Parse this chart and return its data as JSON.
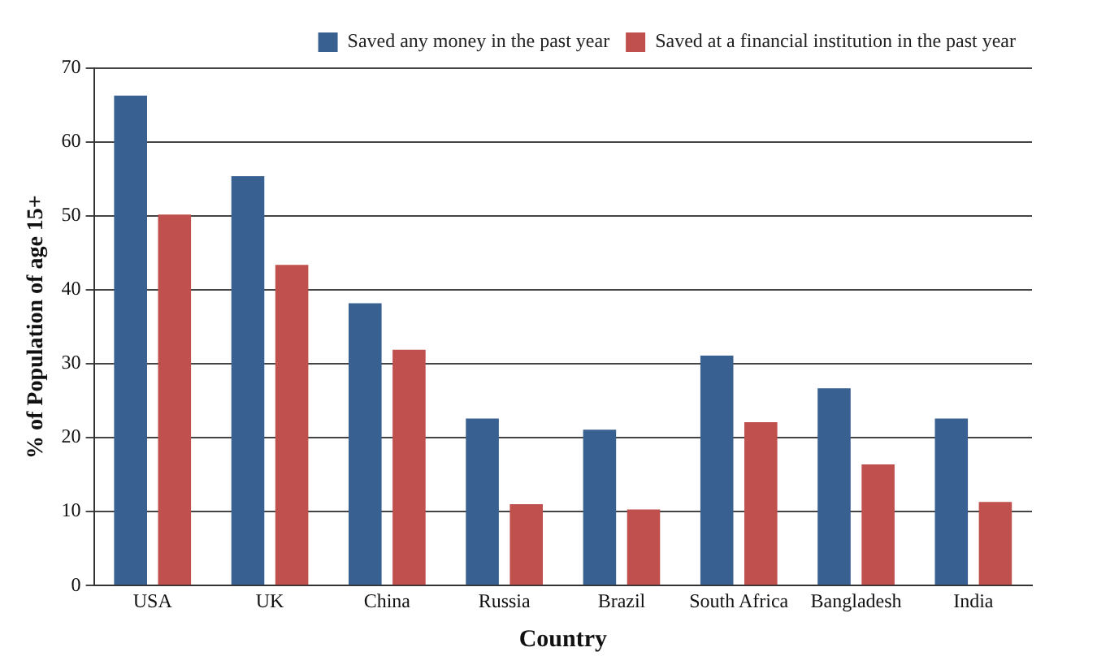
{
  "chart_data": {
    "type": "bar",
    "xlabel": "Country",
    "ylabel": "% of Population of age 15+",
    "categories": [
      "USA",
      "UK",
      "China",
      "Russia",
      "Brazil",
      "South Africa",
      "Bangladesh",
      "India"
    ],
    "series": [
      {
        "name": "Saved any money in the past year",
        "color": "#386090",
        "values": [
          66.3,
          55.4,
          38.2,
          22.6,
          21.1,
          31.1,
          26.7,
          22.6
        ]
      },
      {
        "name": "Saved at a financial institution in the past year",
        "color": "#c0504d",
        "values": [
          50.2,
          43.4,
          31.9,
          11.0,
          10.3,
          22.1,
          16.4,
          11.3
        ]
      }
    ],
    "ylim": [
      0,
      70
    ],
    "yticks": [
      0,
      10,
      20,
      30,
      40,
      50,
      60,
      70
    ],
    "grid": "y",
    "legend": "top right"
  }
}
